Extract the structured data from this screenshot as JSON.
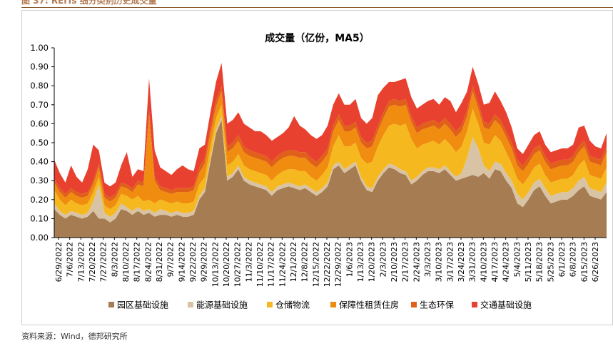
{
  "header": {
    "caption": "图 37: REITs 细分类别历史成交量"
  },
  "source_note": "资料来源：Wind，德邦研究所",
  "colors": {
    "园区基础设施": "#a67c52",
    "能源基础设施": "#d9c3a5",
    "仓储物流": "#f5b91f",
    "保障性租赁住房": "#f08c0f",
    "生态环保": "#e0601a",
    "交通基础设施": "#e8412f"
  },
  "chart_data": {
    "type": "area",
    "stacked": true,
    "title": "成交量（亿份，MA5）",
    "ylim": [
      0,
      1.0
    ],
    "yticks": [
      "0.00",
      "0.10",
      "0.20",
      "0.30",
      "0.40",
      "0.50",
      "0.60",
      "0.70",
      "0.80",
      "0.90",
      "1.00"
    ],
    "x_tick_labels": [
      "6/29/2022",
      "7/6/2022",
      "7/13/2022",
      "7/20/2022",
      "7/27/2022",
      "8/3/2022",
      "8/10/2022",
      "8/17/2022",
      "8/24/2022",
      "8/31/2022",
      "9/7/2022",
      "9/14/2022",
      "9/22/2022",
      "9/29/2022",
      "10/13/2022",
      "10/20/2022",
      "10/27/2022",
      "11/3/2022",
      "11/10/2022",
      "11/17/2022",
      "11/24/2022",
      "12/1/2022",
      "12/8/2022",
      "12/15/2022",
      "12/22/2022",
      "12/29/2022",
      "1/6/2023",
      "1/13/2023",
      "1/20/2023",
      "2/3/2023",
      "2/10/2023",
      "2/17/2023",
      "2/24/2023",
      "3/3/2023",
      "3/10/2023",
      "3/17/2023",
      "3/24/2023",
      "3/31/2023",
      "4/10/2023",
      "4/17/2023",
      "4/24/2023",
      "5/4/2023",
      "5/11/2023",
      "5/18/2023",
      "5/25/2023",
      "6/1/2023",
      "6/8/2023",
      "6/15/2023",
      "6/26/2023"
    ],
    "legend_position": "bottom",
    "grid": false,
    "series": [
      {
        "name": "园区基础设施",
        "values": [
          0.15,
          0.12,
          0.1,
          0.12,
          0.11,
          0.1,
          0.11,
          0.14,
          0.1,
          0.1,
          0.08,
          0.1,
          0.15,
          0.14,
          0.12,
          0.14,
          0.12,
          0.13,
          0.11,
          0.12,
          0.12,
          0.11,
          0.12,
          0.11,
          0.11,
          0.12,
          0.2,
          0.24,
          0.4,
          0.55,
          0.62,
          0.3,
          0.32,
          0.36,
          0.3,
          0.28,
          0.27,
          0.26,
          0.25,
          0.22,
          0.25,
          0.26,
          0.27,
          0.26,
          0.25,
          0.26,
          0.24,
          0.22,
          0.24,
          0.27,
          0.36,
          0.38,
          0.34,
          0.36,
          0.38,
          0.3,
          0.25,
          0.24,
          0.3,
          0.34,
          0.37,
          0.36,
          0.34,
          0.33,
          0.28,
          0.3,
          0.33,
          0.35,
          0.35,
          0.34,
          0.36,
          0.33,
          0.3,
          0.31,
          0.32,
          0.33,
          0.32,
          0.34,
          0.31,
          0.36,
          0.35,
          0.3,
          0.26,
          0.18,
          0.16,
          0.2,
          0.25,
          0.27,
          0.22,
          0.18,
          0.19,
          0.2,
          0.2,
          0.22,
          0.25,
          0.27,
          0.22,
          0.21,
          0.2,
          0.24
        ]
      },
      {
        "name": "能源基础设施",
        "values": [
          0.03,
          0.02,
          0.02,
          0.02,
          0.02,
          0.02,
          0.02,
          0.05,
          0.18,
          0.03,
          0.03,
          0.03,
          0.03,
          0.02,
          0.02,
          0.02,
          0.02,
          0.02,
          0.02,
          0.03,
          0.02,
          0.02,
          0.02,
          0.02,
          0.02,
          0.02,
          0.02,
          0.02,
          0.02,
          0.02,
          0.02,
          0.02,
          0.02,
          0.02,
          0.02,
          0.02,
          0.02,
          0.02,
          0.02,
          0.02,
          0.02,
          0.02,
          0.02,
          0.02,
          0.02,
          0.02,
          0.02,
          0.02,
          0.02,
          0.02,
          0.02,
          0.02,
          0.02,
          0.02,
          0.02,
          0.02,
          0.02,
          0.02,
          0.02,
          0.02,
          0.02,
          0.02,
          0.02,
          0.02,
          0.02,
          0.02,
          0.02,
          0.02,
          0.02,
          0.02,
          0.02,
          0.02,
          0.02,
          0.03,
          0.1,
          0.2,
          0.15,
          0.04,
          0.04,
          0.04,
          0.04,
          0.04,
          0.04,
          0.05,
          0.04,
          0.04,
          0.04,
          0.04,
          0.04,
          0.04,
          0.04,
          0.04,
          0.04,
          0.04,
          0.05,
          0.05,
          0.04,
          0.04,
          0.04,
          0.05
        ]
      },
      {
        "name": "仓储物流",
        "values": [
          0.07,
          0.06,
          0.05,
          0.06,
          0.05,
          0.05,
          0.05,
          0.05,
          0.04,
          0.04,
          0.04,
          0.04,
          0.05,
          0.06,
          0.06,
          0.06,
          0.05,
          0.05,
          0.05,
          0.05,
          0.05,
          0.05,
          0.05,
          0.05,
          0.05,
          0.05,
          0.06,
          0.06,
          0.06,
          0.06,
          0.06,
          0.06,
          0.06,
          0.06,
          0.06,
          0.06,
          0.06,
          0.06,
          0.06,
          0.06,
          0.06,
          0.07,
          0.07,
          0.08,
          0.08,
          0.07,
          0.06,
          0.06,
          0.07,
          0.08,
          0.1,
          0.14,
          0.12,
          0.1,
          0.1,
          0.1,
          0.12,
          0.14,
          0.16,
          0.18,
          0.2,
          0.22,
          0.23,
          0.25,
          0.22,
          0.15,
          0.14,
          0.13,
          0.14,
          0.13,
          0.14,
          0.14,
          0.13,
          0.14,
          0.14,
          0.15,
          0.13,
          0.12,
          0.14,
          0.14,
          0.12,
          0.11,
          0.09,
          0.08,
          0.08,
          0.08,
          0.08,
          0.08,
          0.07,
          0.07,
          0.07,
          0.07,
          0.07,
          0.07,
          0.08,
          0.09,
          0.07,
          0.07,
          0.07,
          0.08
        ]
      },
      {
        "name": "保障性租赁住房",
        "values": [
          0.04,
          0.04,
          0.04,
          0.04,
          0.04,
          0.04,
          0.04,
          0.04,
          0.05,
          0.04,
          0.04,
          0.04,
          0.04,
          0.04,
          0.04,
          0.06,
          0.08,
          0.45,
          0.12,
          0.05,
          0.05,
          0.05,
          0.05,
          0.06,
          0.06,
          0.06,
          0.06,
          0.07,
          0.07,
          0.06,
          0.07,
          0.07,
          0.07,
          0.07,
          0.07,
          0.07,
          0.07,
          0.07,
          0.07,
          0.07,
          0.07,
          0.07,
          0.07,
          0.07,
          0.07,
          0.07,
          0.07,
          0.07,
          0.07,
          0.07,
          0.08,
          0.08,
          0.08,
          0.08,
          0.08,
          0.08,
          0.08,
          0.08,
          0.08,
          0.09,
          0.1,
          0.1,
          0.1,
          0.1,
          0.09,
          0.08,
          0.08,
          0.08,
          0.08,
          0.08,
          0.08,
          0.08,
          0.08,
          0.08,
          0.08,
          0.09,
          0.08,
          0.08,
          0.08,
          0.08,
          0.08,
          0.08,
          0.08,
          0.07,
          0.07,
          0.07,
          0.07,
          0.07,
          0.07,
          0.07,
          0.07,
          0.07,
          0.07,
          0.07,
          0.07,
          0.07,
          0.07,
          0.07,
          0.07,
          0.08
        ]
      },
      {
        "name": "生态环保",
        "values": [
          0.02,
          0.02,
          0.02,
          0.02,
          0.02,
          0.02,
          0.02,
          0.02,
          0.02,
          0.02,
          0.02,
          0.02,
          0.02,
          0.02,
          0.02,
          0.02,
          0.02,
          0.02,
          0.02,
          0.02,
          0.02,
          0.02,
          0.02,
          0.02,
          0.02,
          0.02,
          0.03,
          0.03,
          0.03,
          0.03,
          0.03,
          0.03,
          0.03,
          0.03,
          0.03,
          0.03,
          0.03,
          0.03,
          0.03,
          0.03,
          0.03,
          0.03,
          0.03,
          0.03,
          0.03,
          0.03,
          0.03,
          0.03,
          0.03,
          0.03,
          0.03,
          0.03,
          0.03,
          0.03,
          0.03,
          0.03,
          0.03,
          0.03,
          0.03,
          0.03,
          0.03,
          0.03,
          0.03,
          0.03,
          0.03,
          0.03,
          0.03,
          0.03,
          0.03,
          0.03,
          0.03,
          0.03,
          0.03,
          0.03,
          0.03,
          0.03,
          0.03,
          0.03,
          0.03,
          0.03,
          0.03,
          0.03,
          0.03,
          0.03,
          0.03,
          0.03,
          0.03,
          0.03,
          0.03,
          0.03,
          0.03,
          0.03,
          0.03,
          0.03,
          0.03,
          0.03,
          0.03,
          0.03,
          0.03,
          0.03
        ]
      },
      {
        "name": "交通基础设施",
        "values": [
          0.1,
          0.08,
          0.06,
          0.12,
          0.08,
          0.06,
          0.12,
          0.19,
          0.07,
          0.06,
          0.06,
          0.06,
          0.09,
          0.17,
          0.06,
          0.06,
          0.06,
          0.17,
          0.14,
          0.1,
          0.09,
          0.08,
          0.1,
          0.12,
          0.1,
          0.08,
          0.1,
          0.07,
          0.08,
          0.1,
          0.12,
          0.12,
          0.12,
          0.12,
          0.12,
          0.12,
          0.11,
          0.12,
          0.11,
          0.11,
          0.1,
          0.1,
          0.12,
          0.18,
          0.14,
          0.12,
          0.12,
          0.12,
          0.11,
          0.12,
          0.11,
          0.11,
          0.11,
          0.11,
          0.12,
          0.1,
          0.1,
          0.12,
          0.16,
          0.13,
          0.1,
          0.09,
          0.11,
          0.11,
          0.1,
          0.1,
          0.1,
          0.11,
          0.11,
          0.1,
          0.11,
          0.12,
          0.1,
          0.12,
          0.1,
          0.1,
          0.1,
          0.09,
          0.11,
          0.12,
          0.1,
          0.1,
          0.08,
          0.06,
          0.06,
          0.07,
          0.07,
          0.07,
          0.06,
          0.06,
          0.06,
          0.06,
          0.06,
          0.06,
          0.1,
          0.08,
          0.08,
          0.06,
          0.06,
          0.07
        ]
      }
    ]
  }
}
